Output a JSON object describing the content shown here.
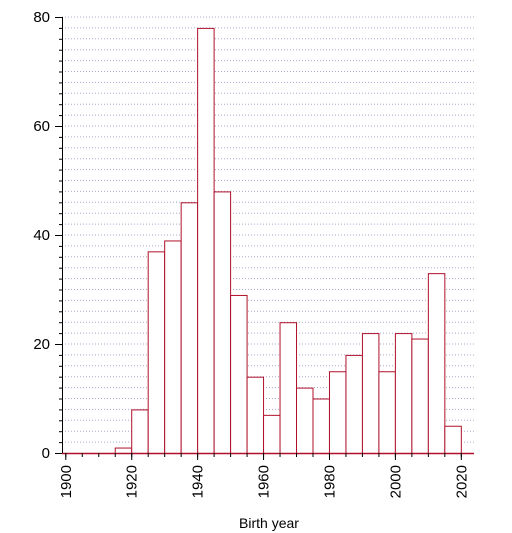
{
  "chart_data": {
    "type": "bar",
    "subtype": "histogram",
    "title": "",
    "xlabel": "Birth year",
    "ylabel": "",
    "bin_width": 5,
    "bins": [
      {
        "start": 1900,
        "value": 0
      },
      {
        "start": 1905,
        "value": 0
      },
      {
        "start": 1910,
        "value": 0
      },
      {
        "start": 1915,
        "value": 1
      },
      {
        "start": 1920,
        "value": 8
      },
      {
        "start": 1925,
        "value": 37
      },
      {
        "start": 1930,
        "value": 39
      },
      {
        "start": 1935,
        "value": 46
      },
      {
        "start": 1940,
        "value": 78
      },
      {
        "start": 1945,
        "value": 48
      },
      {
        "start": 1950,
        "value": 29
      },
      {
        "start": 1955,
        "value": 14
      },
      {
        "start": 1960,
        "value": 7
      },
      {
        "start": 1965,
        "value": 24
      },
      {
        "start": 1970,
        "value": 12
      },
      {
        "start": 1975,
        "value": 10
      },
      {
        "start": 1980,
        "value": 15
      },
      {
        "start": 1985,
        "value": 18
      },
      {
        "start": 1990,
        "value": 22
      },
      {
        "start": 1995,
        "value": 15
      },
      {
        "start": 2000,
        "value": 22
      },
      {
        "start": 2005,
        "value": 21
      },
      {
        "start": 2010,
        "value": 33
      },
      {
        "start": 2015,
        "value": 5
      }
    ],
    "xlim": [
      1899,
      2024
    ],
    "ylim": [
      0,
      80
    ],
    "xticks": [
      "1900",
      "1920",
      "1940",
      "1960",
      "1980",
      "2000",
      "2020"
    ],
    "yticks": [
      "0",
      "20",
      "40",
      "60",
      "80"
    ],
    "y_minor_step": 2,
    "x_minor_step": 5,
    "grid": "horizontal dotted",
    "legend": "none",
    "colors": {
      "bar_stroke": "#b0102a",
      "bar_fill": "#ffffff",
      "grid": "#a7a7d0",
      "axis": "#000000"
    }
  }
}
